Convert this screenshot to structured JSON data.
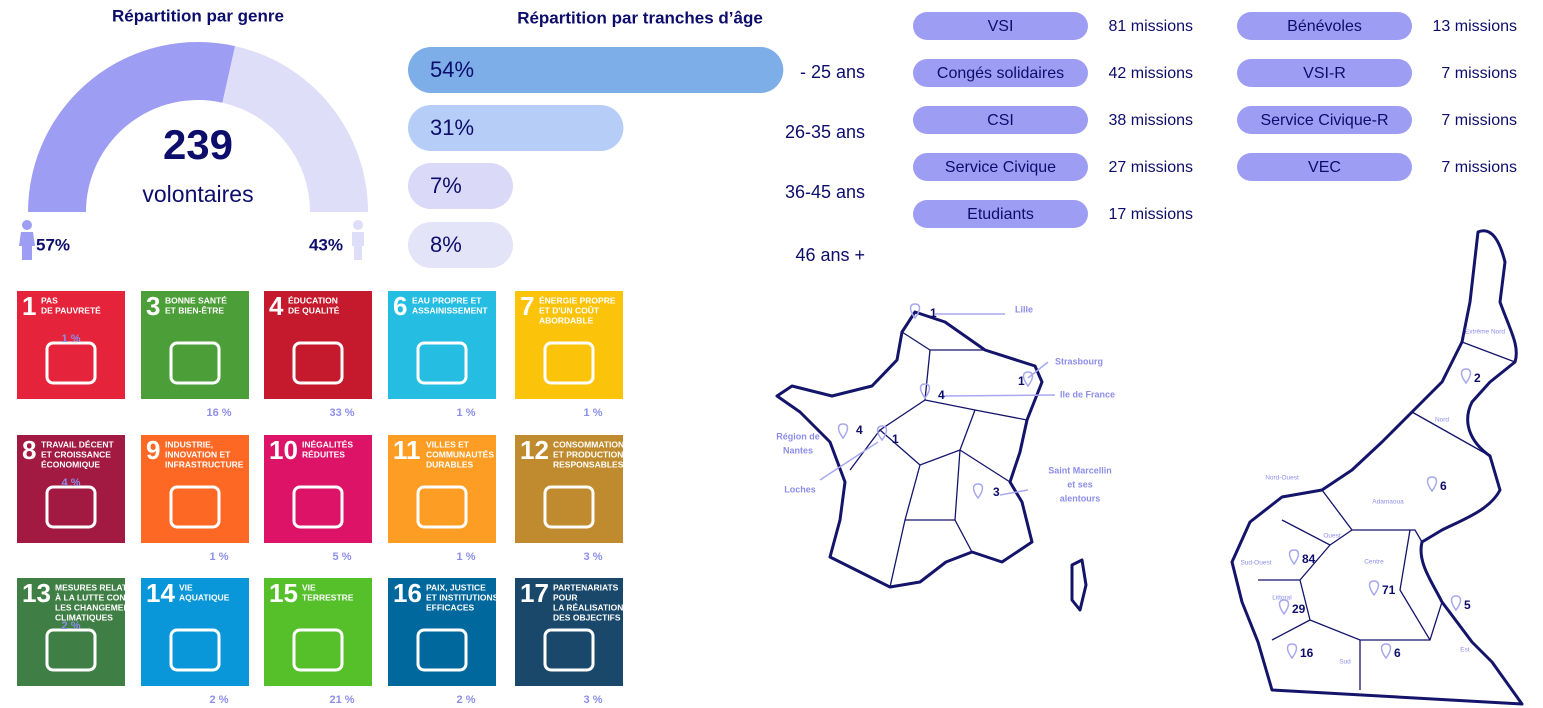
{
  "gender": {
    "title": "Répartition par genre",
    "total": "239",
    "total_label": "volontaires",
    "parts": [
      {
        "value": 57,
        "label": "57%",
        "color": "#9d9df4"
      },
      {
        "value": 43,
        "label": "43%",
        "color": "#dedef9"
      }
    ]
  },
  "age": {
    "title": "Répartition par tranches d’âge",
    "bars": [
      {
        "value": 54,
        "label": "54%",
        "range": "- 25 ans",
        "color": "#7eaee8"
      },
      {
        "value": 31,
        "label": "31%",
        "range": "26-35 ans",
        "color": "#b6cdf7"
      },
      {
        "value": 7,
        "label": "7%",
        "range": "36-45 ans",
        "color": "#dad9f7"
      },
      {
        "value": 8,
        "label": "8%",
        "range": "46 ans +",
        "color": "#e4e4f8"
      }
    ]
  },
  "missions": [
    [
      {
        "name": "VSI",
        "count": "81 missions"
      },
      {
        "name": "Congés solidaires",
        "count": "42 missions"
      },
      {
        "name": "CSI",
        "count": "38 missions"
      },
      {
        "name": "Service Civique",
        "count": "27 missions"
      },
      {
        "name": "Etudiants",
        "count": "17 missions"
      }
    ],
    [
      {
        "name": "Bénévoles",
        "count": "13 missions"
      },
      {
        "name": "VSI-R",
        "count": "7 missions"
      },
      {
        "name": "Service Civique-R",
        "count": "7 missions"
      },
      {
        "name": "VEC",
        "count": "7 missions"
      }
    ]
  ],
  "sdg": [
    {
      "number": "1",
      "title": [
        "PAS",
        "DE PAUVRETÉ"
      ],
      "share": "1 %",
      "color": "#e5243b"
    },
    {
      "number": "3",
      "title": [
        "BONNE SANTÉ",
        "ET BIEN-ÊTRE"
      ],
      "share": "16 %",
      "color": "#4c9f38"
    },
    {
      "number": "4",
      "title": [
        "ÉDUCATION",
        "DE QUALITÉ"
      ],
      "share": "33 %",
      "color": "#c5192d"
    },
    {
      "number": "6",
      "title": [
        "EAU PROPRE ET",
        "ASSAINISSEMENT"
      ],
      "share": "1 %",
      "color": "#26bde2"
    },
    {
      "number": "7",
      "title": [
        "ÉNERGIE PROPRE",
        "ET D'UN COÛT",
        "ABORDABLE"
      ],
      "share": "1 %",
      "color": "#fcc30b"
    },
    {
      "number": "8",
      "title": [
        "TRAVAIL DÉCENT",
        "ET CROISSANCE",
        "ÉCONOMIQUE"
      ],
      "share": "4 %",
      "color": "#a21942"
    },
    {
      "number": "9",
      "title": [
        "INDUSTRIE,",
        "INNOVATION ET",
        "INFRASTRUCTURE"
      ],
      "share": "1 %",
      "color": "#fd6925"
    },
    {
      "number": "10",
      "title": [
        "INÉGALITÉS",
        "RÉDUITES"
      ],
      "share": "5 %",
      "color": "#dd1367"
    },
    {
      "number": "11",
      "title": [
        "VILLES ET",
        "COMMUNAUTÉS",
        "DURABLES"
      ],
      "share": "1 %",
      "color": "#fd9d24"
    },
    {
      "number": "12",
      "title": [
        "CONSOMMATION",
        "ET PRODUCTION",
        "RESPONSABLES"
      ],
      "share": "3 %",
      "color": "#bf8b2e"
    },
    {
      "number": "13",
      "title": [
        "MESURES RELATIVES",
        "À LA LUTTE CONTRE",
        "LES CHANGEMENTS",
        "CLIMATIQUES"
      ],
      "share": "2 %",
      "color": "#3f7e44"
    },
    {
      "number": "14",
      "title": [
        "VIE",
        "AQUATIQUE"
      ],
      "share": "2 %",
      "color": "#0a97d9"
    },
    {
      "number": "15",
      "title": [
        "VIE",
        "TERRESTRE"
      ],
      "share": "21 %",
      "color": "#56c02b"
    },
    {
      "number": "16",
      "title": [
        "PAIX, JUSTICE",
        "ET INSTITUTIONS",
        "EFFICACES"
      ],
      "share": "2 %",
      "color": "#00689d"
    },
    {
      "number": "17",
      "title": [
        "PARTENARIATS",
        "POUR",
        "LA RÉALISATION",
        "DES OBJECTIFS"
      ],
      "share": "3 %",
      "color": "#19486a"
    }
  ],
  "france": [
    {
      "count": "1",
      "label": [
        "Lille"
      ]
    },
    {
      "count": "1",
      "label": [
        "Strasbourg"
      ]
    },
    {
      "count": "4",
      "label": [
        "Ile de France"
      ]
    },
    {
      "count": "4",
      "label": [
        "Région de",
        "Nantes"
      ]
    },
    {
      "count": "1",
      "label": [
        "Loches"
      ]
    },
    {
      "count": "3",
      "label": [
        "Saint Marcellin",
        "et ses",
        "alentours"
      ]
    }
  ],
  "cameroon": {
    "regions": [
      "Extrême Nord",
      "Nord",
      "Adamaoua",
      "Nord-Ouest",
      "Ouest",
      "Sud-Ouest",
      "Littoral",
      "Centre",
      "Est",
      "Sud"
    ],
    "counts": [
      "2",
      "6",
      "84",
      "71",
      "29",
      "16",
      "6",
      "5"
    ]
  }
}
